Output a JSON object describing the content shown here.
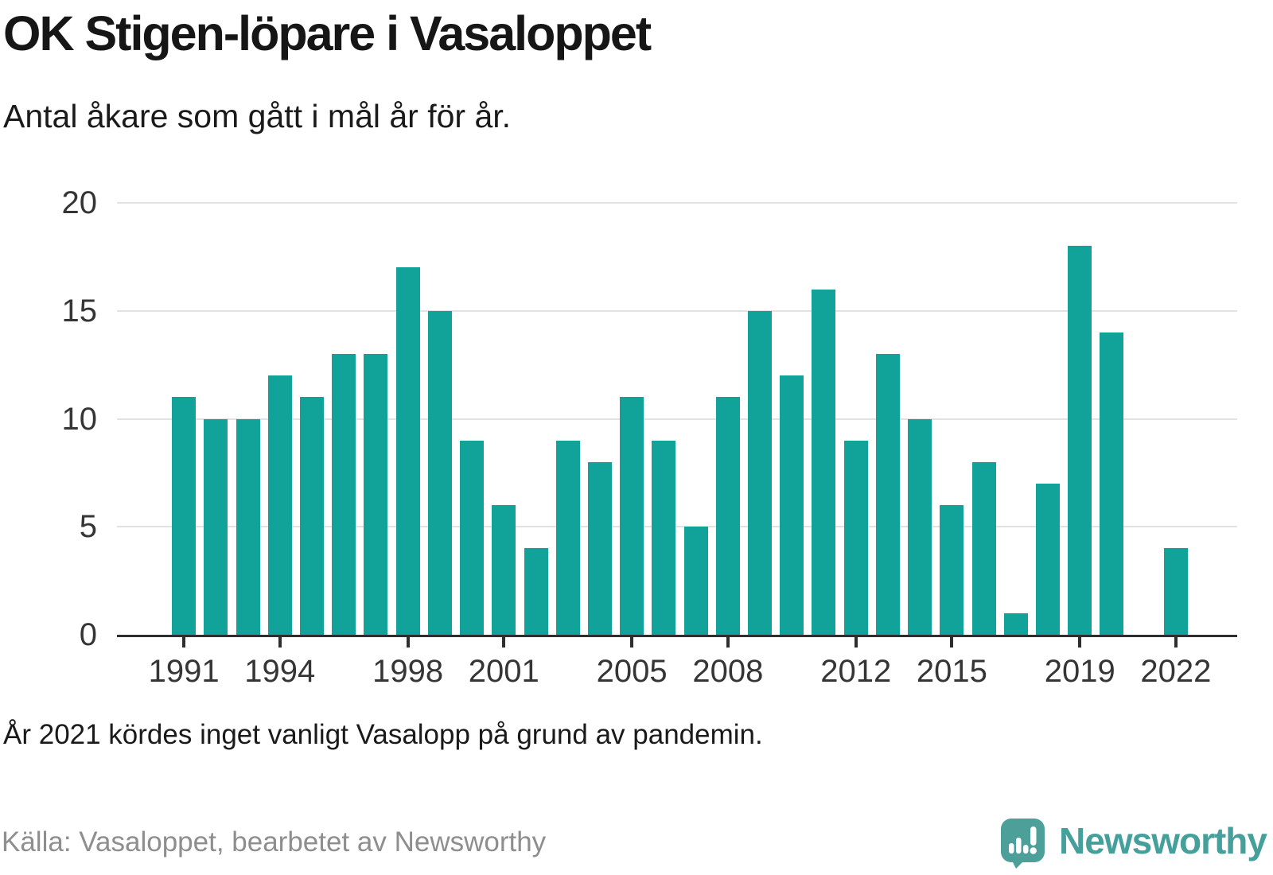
{
  "header": {
    "title": "OK Stigen-löpare i Vasaloppet",
    "subtitle": "Antal åkare som gått i mål år för år."
  },
  "chart_data": {
    "type": "bar",
    "title": "OK Stigen-löpare i Vasaloppet",
    "subtitle": "Antal åkare som gått i mål år för år.",
    "xlabel": "",
    "ylabel": "",
    "ylim": [
      0,
      20
    ],
    "y_ticks": [
      0,
      5,
      10,
      15,
      20
    ],
    "x_tick_labels": [
      "1991",
      "1994",
      "1998",
      "2001",
      "2005",
      "2008",
      "2012",
      "2015",
      "2019",
      "2022"
    ],
    "grid": "horizontal",
    "legend": "none",
    "categories": [
      1991,
      1992,
      1993,
      1994,
      1995,
      1996,
      1997,
      1998,
      1999,
      2000,
      2001,
      2002,
      2003,
      2004,
      2005,
      2006,
      2007,
      2008,
      2009,
      2010,
      2011,
      2012,
      2013,
      2014,
      2015,
      2016,
      2017,
      2018,
      2019,
      2020,
      2021,
      2022
    ],
    "values": [
      11,
      10,
      10,
      12,
      11,
      13,
      13,
      17,
      15,
      9,
      6,
      4,
      9,
      8,
      11,
      9,
      5,
      11,
      15,
      12,
      16,
      9,
      13,
      10,
      6,
      8,
      1,
      7,
      18,
      14,
      null,
      4
    ]
  },
  "footer": {
    "note": "År 2021 kördes inget vanligt Vasalopp på grund av pandemin.",
    "source": "Källa: Vasaloppet, bearbetet av Newsworthy"
  },
  "brand": {
    "name": "Newsworthy"
  },
  "colors": {
    "bar": "#11a29a",
    "grid_line": "#e2e2e2",
    "axis_line": "#2e2e2e",
    "text": "#1a1a1a",
    "muted_text": "#8e8e8e",
    "logo_teal": "#4da099",
    "brand_text": "#45a09b"
  }
}
